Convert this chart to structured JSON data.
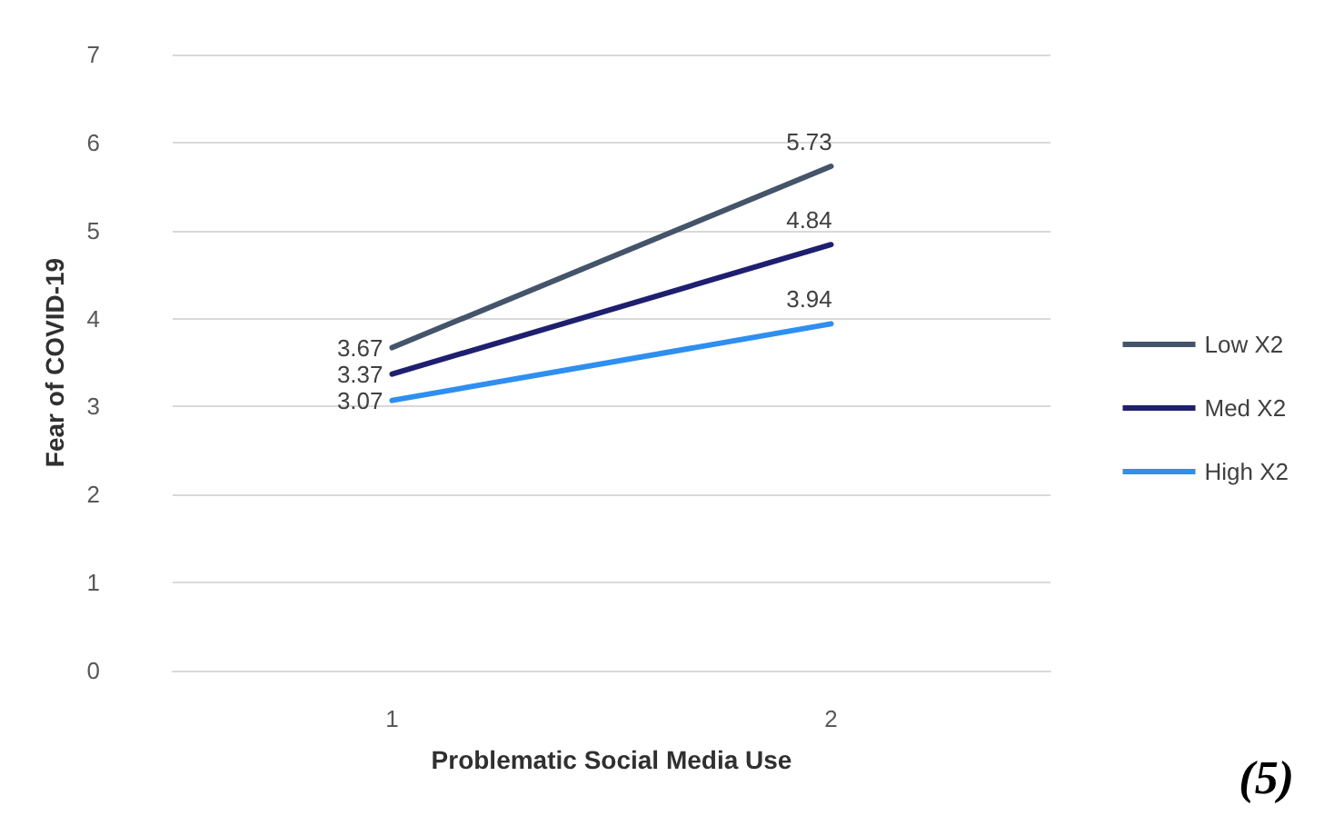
{
  "chart_data": {
    "type": "line",
    "xlabel": "Problematic Social Media Use",
    "ylabel": "Fear of COVID-19",
    "categories": [
      "1",
      "2"
    ],
    "series": [
      {
        "name": "Low X2",
        "color": "#44546a",
        "values": [
          3.67,
          5.73
        ]
      },
      {
        "name": "Med X2",
        "color": "#1f1f70",
        "values": [
          3.37,
          4.84
        ]
      },
      {
        "name": "High X2",
        "color": "#2e8ff0",
        "values": [
          3.07,
          3.94
        ]
      }
    ],
    "ylim": [
      0,
      7
    ],
    "yticks": [
      0,
      1,
      2,
      3,
      4,
      5,
      6,
      7
    ],
    "grid": "y",
    "legend": "right",
    "marker": "none",
    "line_style": "solid",
    "data_labels": true,
    "annotations": [
      "(5)"
    ]
  }
}
